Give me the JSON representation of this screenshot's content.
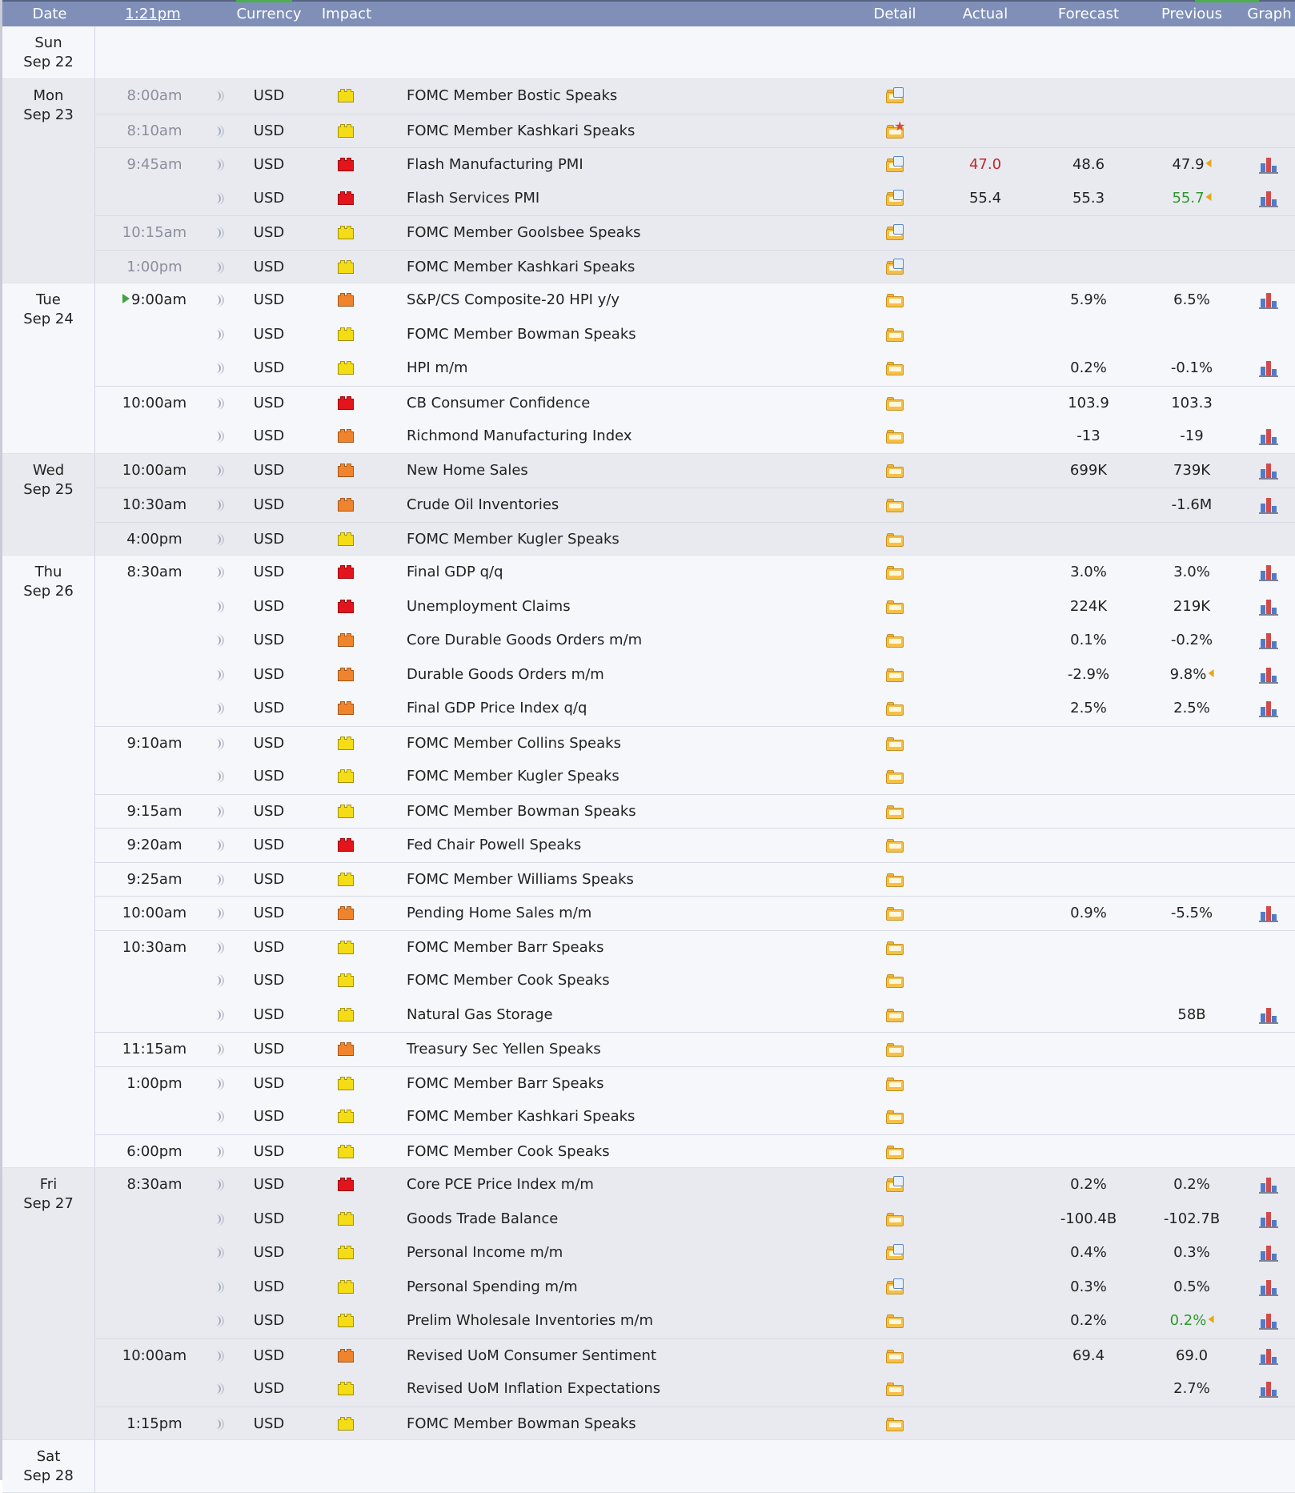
{
  "header": {
    "date": "Date",
    "time": "1:21pm",
    "currency": "Currency",
    "impact": "Impact",
    "detail": "Detail",
    "actual": "Actual",
    "forecast": "Forecast",
    "previous": "Previous",
    "graph": "Graph"
  },
  "impact_colors": {
    "high": "#e3141b",
    "medium": "#f0842c",
    "low": "#f4dc16"
  },
  "days": [
    {
      "dow": "Sun",
      "date": "Sep 22",
      "shade": "norm",
      "events": []
    },
    {
      "dow": "Mon",
      "date": "Sep 23",
      "shade": "alt",
      "events": [
        {
          "time": "8:00am",
          "past": true,
          "currency": "USD",
          "impact": "low",
          "title": "FOMC Member Bostic Speaks",
          "detail": "page",
          "actual": "",
          "forecast": "",
          "previous": "",
          "graph": false
        },
        {
          "time": "8:10am",
          "past": true,
          "currency": "USD",
          "impact": "low",
          "title": "FOMC Member Kashkari Speaks",
          "detail": "star",
          "actual": "",
          "forecast": "",
          "previous": "",
          "graph": false
        },
        {
          "time": "9:45am",
          "past": true,
          "currency": "USD",
          "impact": "high",
          "title": "Flash Manufacturing PMI",
          "detail": "page",
          "actual": "47.0",
          "actual_color": "red",
          "forecast": "48.6",
          "previous": "47.9",
          "revised": true,
          "graph": true
        },
        {
          "time": "",
          "past": true,
          "currency": "USD",
          "impact": "high",
          "title": "Flash Services PMI",
          "detail": "page",
          "actual": "55.4",
          "forecast": "55.3",
          "previous": "55.7",
          "previous_color": "green",
          "revised": true,
          "graph": true
        },
        {
          "time": "10:15am",
          "past": true,
          "currency": "USD",
          "impact": "low",
          "title": "FOMC Member Goolsbee Speaks",
          "detail": "page",
          "actual": "",
          "forecast": "",
          "previous": "",
          "graph": false
        },
        {
          "time": "1:00pm",
          "past": true,
          "currency": "USD",
          "impact": "low",
          "title": "FOMC Member Kashkari Speaks",
          "detail": "page",
          "actual": "",
          "forecast": "",
          "previous": "",
          "graph": false
        }
      ]
    },
    {
      "dow": "Tue",
      "date": "Sep 24",
      "shade": "norm",
      "events": [
        {
          "time": "9:00am",
          "upnext": true,
          "currency": "USD",
          "impact": "medium",
          "title": "S&P/CS Composite-20 HPI y/y",
          "detail": "folder",
          "actual": "",
          "forecast": "5.9%",
          "previous": "6.5%",
          "graph": true
        },
        {
          "time": "",
          "currency": "USD",
          "impact": "low",
          "title": "FOMC Member Bowman Speaks",
          "detail": "folder",
          "actual": "",
          "forecast": "",
          "previous": "",
          "graph": false
        },
        {
          "time": "",
          "currency": "USD",
          "impact": "low",
          "title": "HPI m/m",
          "detail": "folder",
          "actual": "",
          "forecast": "0.2%",
          "previous": "-0.1%",
          "graph": true
        },
        {
          "time": "10:00am",
          "currency": "USD",
          "impact": "high",
          "title": "CB Consumer Confidence",
          "detail": "folder",
          "actual": "",
          "forecast": "103.9",
          "previous": "103.3",
          "graph": false
        },
        {
          "time": "",
          "currency": "USD",
          "impact": "medium",
          "title": "Richmond Manufacturing Index",
          "detail": "folder",
          "actual": "",
          "forecast": "-13",
          "previous": "-19",
          "graph": true
        }
      ]
    },
    {
      "dow": "Wed",
      "date": "Sep 25",
      "shade": "alt",
      "events": [
        {
          "time": "10:00am",
          "currency": "USD",
          "impact": "medium",
          "title": "New Home Sales",
          "detail": "folder",
          "actual": "",
          "forecast": "699K",
          "previous": "739K",
          "graph": true
        },
        {
          "time": "10:30am",
          "currency": "USD",
          "impact": "medium",
          "title": "Crude Oil Inventories",
          "detail": "folder",
          "actual": "",
          "forecast": "",
          "previous": "-1.6M",
          "graph": true
        },
        {
          "time": "4:00pm",
          "currency": "USD",
          "impact": "low",
          "title": "FOMC Member Kugler Speaks",
          "detail": "folder",
          "actual": "",
          "forecast": "",
          "previous": "",
          "graph": false
        }
      ]
    },
    {
      "dow": "Thu",
      "date": "Sep 26",
      "shade": "norm",
      "events": [
        {
          "time": "8:30am",
          "currency": "USD",
          "impact": "high",
          "title": "Final GDP q/q",
          "detail": "folder",
          "actual": "",
          "forecast": "3.0%",
          "previous": "3.0%",
          "graph": true
        },
        {
          "time": "",
          "currency": "USD",
          "impact": "high",
          "title": "Unemployment Claims",
          "detail": "folder",
          "actual": "",
          "forecast": "224K",
          "previous": "219K",
          "graph": true
        },
        {
          "time": "",
          "currency": "USD",
          "impact": "medium",
          "title": "Core Durable Goods Orders m/m",
          "detail": "folder",
          "actual": "",
          "forecast": "0.1%",
          "previous": "-0.2%",
          "graph": true
        },
        {
          "time": "",
          "currency": "USD",
          "impact": "medium",
          "title": "Durable Goods Orders m/m",
          "detail": "folder",
          "actual": "",
          "forecast": "-2.9%",
          "previous": "9.8%",
          "revised": true,
          "graph": true
        },
        {
          "time": "",
          "currency": "USD",
          "impact": "medium",
          "title": "Final GDP Price Index q/q",
          "detail": "folder",
          "actual": "",
          "forecast": "2.5%",
          "previous": "2.5%",
          "graph": true
        },
        {
          "time": "9:10am",
          "currency": "USD",
          "impact": "low",
          "title": "FOMC Member Collins Speaks",
          "detail": "folder",
          "actual": "",
          "forecast": "",
          "previous": "",
          "graph": false
        },
        {
          "time": "",
          "currency": "USD",
          "impact": "low",
          "title": "FOMC Member Kugler Speaks",
          "detail": "folder",
          "actual": "",
          "forecast": "",
          "previous": "",
          "graph": false
        },
        {
          "time": "9:15am",
          "currency": "USD",
          "impact": "low",
          "title": "FOMC Member Bowman Speaks",
          "detail": "folder",
          "actual": "",
          "forecast": "",
          "previous": "",
          "graph": false
        },
        {
          "time": "9:20am",
          "currency": "USD",
          "impact": "high",
          "title": "Fed Chair Powell Speaks",
          "detail": "folder",
          "actual": "",
          "forecast": "",
          "previous": "",
          "graph": false
        },
        {
          "time": "9:25am",
          "currency": "USD",
          "impact": "low",
          "title": "FOMC Member Williams Speaks",
          "detail": "folder",
          "actual": "",
          "forecast": "",
          "previous": "",
          "graph": false
        },
        {
          "time": "10:00am",
          "currency": "USD",
          "impact": "medium",
          "title": "Pending Home Sales m/m",
          "detail": "folder",
          "actual": "",
          "forecast": "0.9%",
          "previous": "-5.5%",
          "graph": true
        },
        {
          "time": "10:30am",
          "currency": "USD",
          "impact": "low",
          "title": "FOMC Member Barr Speaks",
          "detail": "folder",
          "actual": "",
          "forecast": "",
          "previous": "",
          "graph": false
        },
        {
          "time": "",
          "currency": "USD",
          "impact": "low",
          "title": "FOMC Member Cook Speaks",
          "detail": "folder",
          "actual": "",
          "forecast": "",
          "previous": "",
          "graph": false
        },
        {
          "time": "",
          "currency": "USD",
          "impact": "low",
          "title": "Natural Gas Storage",
          "detail": "folder",
          "actual": "",
          "forecast": "",
          "previous": "58B",
          "graph": true
        },
        {
          "time": "11:15am",
          "currency": "USD",
          "impact": "medium",
          "title": "Treasury Sec Yellen Speaks",
          "detail": "folder",
          "actual": "",
          "forecast": "",
          "previous": "",
          "graph": false
        },
        {
          "time": "1:00pm",
          "currency": "USD",
          "impact": "low",
          "title": "FOMC Member Barr Speaks",
          "detail": "folder",
          "actual": "",
          "forecast": "",
          "previous": "",
          "graph": false
        },
        {
          "time": "",
          "currency": "USD",
          "impact": "low",
          "title": "FOMC Member Kashkari Speaks",
          "detail": "folder",
          "actual": "",
          "forecast": "",
          "previous": "",
          "graph": false
        },
        {
          "time": "6:00pm",
          "currency": "USD",
          "impact": "low",
          "title": "FOMC Member Cook Speaks",
          "detail": "folder",
          "actual": "",
          "forecast": "",
          "previous": "",
          "graph": false
        }
      ]
    },
    {
      "dow": "Fri",
      "date": "Sep 27",
      "shade": "alt",
      "events": [
        {
          "time": "8:30am",
          "currency": "USD",
          "impact": "high",
          "title": "Core PCE Price Index m/m",
          "detail": "page",
          "actual": "",
          "forecast": "0.2%",
          "previous": "0.2%",
          "graph": true
        },
        {
          "time": "",
          "currency": "USD",
          "impact": "low",
          "title": "Goods Trade Balance",
          "detail": "folder",
          "actual": "",
          "forecast": "-100.4B",
          "previous": "-102.7B",
          "graph": true
        },
        {
          "time": "",
          "currency": "USD",
          "impact": "low",
          "title": "Personal Income m/m",
          "detail": "page",
          "actual": "",
          "forecast": "0.4%",
          "previous": "0.3%",
          "graph": true
        },
        {
          "time": "",
          "currency": "USD",
          "impact": "low",
          "title": "Personal Spending m/m",
          "detail": "page",
          "actual": "",
          "forecast": "0.3%",
          "previous": "0.5%",
          "graph": true
        },
        {
          "time": "",
          "currency": "USD",
          "impact": "low",
          "title": "Prelim Wholesale Inventories m/m",
          "detail": "folder",
          "actual": "",
          "forecast": "0.2%",
          "previous": "0.2%",
          "previous_color": "green",
          "revised": true,
          "graph": true
        },
        {
          "time": "10:00am",
          "currency": "USD",
          "impact": "medium",
          "title": "Revised UoM Consumer Sentiment",
          "detail": "folder",
          "actual": "",
          "forecast": "69.4",
          "previous": "69.0",
          "graph": true
        },
        {
          "time": "",
          "currency": "USD",
          "impact": "low",
          "title": "Revised UoM Inflation Expectations",
          "detail": "folder",
          "actual": "",
          "forecast": "",
          "previous": "2.7%",
          "graph": true
        },
        {
          "time": "1:15pm",
          "currency": "USD",
          "impact": "low",
          "title": "FOMC Member Bowman Speaks",
          "detail": "folder",
          "actual": "",
          "forecast": "",
          "previous": "",
          "graph": false
        }
      ]
    },
    {
      "dow": "Sat",
      "date": "Sep 28",
      "shade": "norm",
      "events": []
    }
  ]
}
